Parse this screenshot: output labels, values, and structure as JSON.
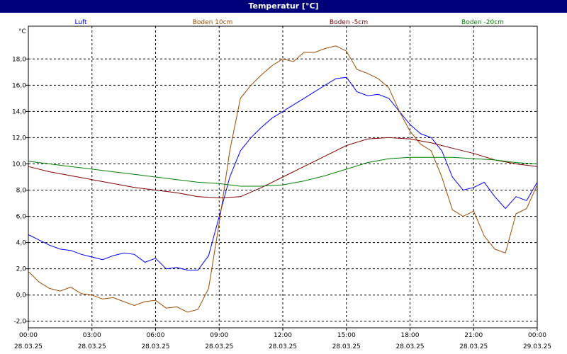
{
  "window": {
    "title": "Temperatur [°C]"
  },
  "chart_data": {
    "type": "line",
    "title": "Temperatur [°C]",
    "ylabel": "°C",
    "ylim": [
      -2.5,
      20.5
    ],
    "yticks": [
      -2.0,
      0.0,
      2.0,
      4.0,
      6.0,
      8.0,
      10.0,
      12.0,
      14.0,
      16.0,
      18.0
    ],
    "ytick_labels": [
      "-2,0",
      "0,0",
      "2,0",
      "4,0",
      "6,0",
      "8,0",
      "10,0",
      "12,0",
      "14,0",
      "16,0",
      "18,0"
    ],
    "xlim": [
      0,
      24
    ],
    "xticks": [
      0,
      3,
      6,
      9,
      12,
      15,
      18,
      21,
      24
    ],
    "xtick_times": [
      "00:00",
      "03:00",
      "06:00",
      "09:00",
      "12:00",
      "15:00",
      "18:00",
      "21:00",
      "00:00"
    ],
    "xtick_dates": [
      "28.03.25",
      "28.03.25",
      "28.03.25",
      "28.03.25",
      "28.03.25",
      "28.03.25",
      "28.03.25",
      "28.03.25",
      "29.03.25"
    ],
    "grid": true,
    "series": [
      {
        "name": "Luft",
        "color": "#0000ff",
        "x": [
          0,
          0.5,
          1,
          1.5,
          2,
          2.5,
          3,
          3.5,
          4,
          4.5,
          5,
          5.5,
          6,
          6.5,
          7,
          7.5,
          8,
          8.5,
          9,
          9.5,
          10,
          10.5,
          11,
          11.5,
          12,
          12.5,
          13,
          13.5,
          14,
          14.5,
          15,
          15.5,
          16,
          16.5,
          17,
          17.5,
          18,
          18.5,
          19,
          19.5,
          20,
          20.5,
          21,
          21.5,
          22,
          22.5,
          23,
          23.5,
          24
        ],
        "values": [
          4.6,
          4.2,
          3.8,
          3.5,
          3.4,
          3.1,
          2.9,
          2.7,
          3.0,
          3.2,
          3.1,
          2.5,
          2.8,
          2.0,
          2.1,
          1.9,
          1.9,
          3.0,
          6.0,
          9.0,
          11.0,
          12.0,
          12.8,
          13.5,
          14.0,
          14.5,
          15.0,
          15.5,
          16.0,
          16.5,
          16.6,
          15.5,
          15.2,
          15.3,
          15.0,
          14.0,
          13.0,
          12.3,
          12.0,
          11.0,
          9.0,
          8.0,
          8.2,
          8.6,
          7.5,
          6.6,
          7.5,
          7.2,
          8.6
        ]
      },
      {
        "name": "Boden 10cm",
        "color": "#9c4a00",
        "x": [
          0,
          0.5,
          1,
          1.5,
          2,
          2.5,
          3,
          3.5,
          4,
          4.5,
          5,
          5.5,
          6,
          6.5,
          7,
          7.5,
          8,
          8.5,
          9,
          9.5,
          10,
          10.5,
          11,
          11.5,
          12,
          12.5,
          13,
          13.5,
          14,
          14.5,
          15,
          15.5,
          16,
          16.5,
          17,
          17.5,
          18,
          18.5,
          19,
          19.5,
          20,
          20.5,
          21,
          21.5,
          22,
          22.5,
          23,
          23.5,
          24
        ],
        "values": [
          1.8,
          1.0,
          0.5,
          0.3,
          0.6,
          0.1,
          0.0,
          -0.3,
          -0.2,
          -0.5,
          -0.8,
          -0.5,
          -0.4,
          -1.0,
          -0.9,
          -1.3,
          -1.1,
          0.5,
          5.5,
          11.0,
          15.0,
          16.0,
          16.8,
          17.5,
          18.0,
          17.8,
          18.5,
          18.5,
          18.8,
          19.0,
          18.6,
          17.2,
          16.9,
          16.5,
          15.8,
          14.0,
          12.5,
          11.5,
          11.0,
          9.0,
          6.5,
          6.0,
          6.4,
          4.5,
          3.5,
          3.2,
          6.2,
          6.6,
          8.4
        ]
      },
      {
        "name": "Boden -5cm",
        "color": "#800000",
        "x": [
          0,
          1,
          2,
          3,
          4,
          5,
          6,
          7,
          8,
          9,
          10,
          11,
          12,
          13,
          14,
          15,
          16,
          17,
          18,
          19,
          20,
          21,
          22,
          23,
          24
        ],
        "values": [
          9.8,
          9.4,
          9.1,
          8.8,
          8.5,
          8.2,
          8.0,
          7.8,
          7.5,
          7.4,
          7.5,
          8.2,
          9.0,
          9.8,
          10.6,
          11.4,
          11.9,
          12.0,
          11.9,
          11.6,
          11.2,
          10.8,
          10.3,
          10.0,
          9.8
        ]
      },
      {
        "name": "Boden -20cm",
        "color": "#008000",
        "x": [
          0,
          1,
          2,
          3,
          4,
          5,
          6,
          7,
          8,
          9,
          10,
          11,
          12,
          13,
          14,
          15,
          16,
          17,
          18,
          19,
          20,
          21,
          22,
          23,
          24
        ],
        "values": [
          10.2,
          10.0,
          9.8,
          9.6,
          9.4,
          9.2,
          9.0,
          8.8,
          8.6,
          8.5,
          8.3,
          8.3,
          8.4,
          8.7,
          9.1,
          9.6,
          10.1,
          10.4,
          10.5,
          10.5,
          10.5,
          10.4,
          10.3,
          10.1,
          10.0
        ]
      }
    ]
  }
}
